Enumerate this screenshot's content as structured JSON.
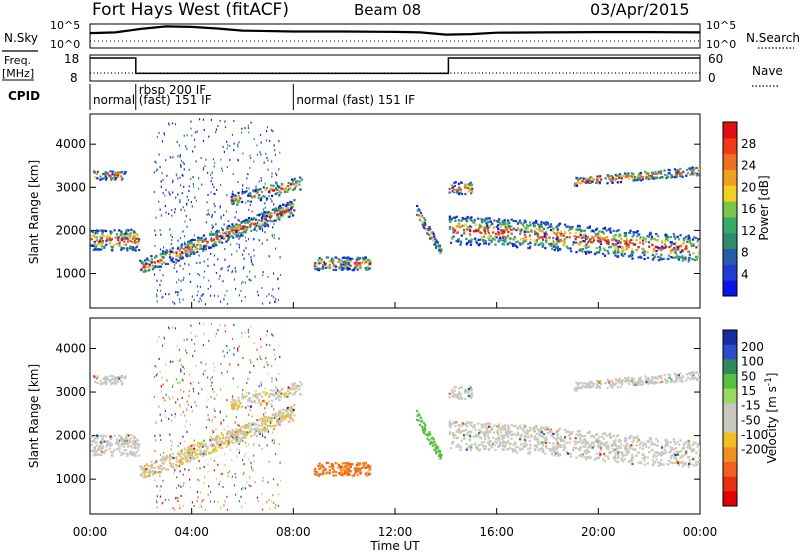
{
  "header": {
    "station": "Fort Hays West (fitACF)",
    "beam": "Beam 08",
    "date": "03/Apr/2015"
  },
  "left_labels": {
    "nsky": "N.Sky",
    "freq_line1": "Freq.",
    "freq_line2": "[MHz]",
    "cpid": "CPID"
  },
  "right_labels": {
    "nsearch": "N.Search",
    "nave": "Nave"
  },
  "cpid_segments": [
    {
      "label": "normal",
      "start": 0.0,
      "end": 1.8
    },
    {
      "label": "rbsp 200 IF",
      "start": 1.8,
      "end": 8.0
    },
    {
      "label": "(fast) 151 IF",
      "start": 1.8,
      "end": 8.0
    },
    {
      "label": "normal (fast) 151 IF",
      "start": 8.0,
      "end": 24.0
    }
  ],
  "colors": {
    "power_bar": [
      "#0a14e6",
      "#1e3cd2",
      "#2a5aaa",
      "#2f8a6e",
      "#3aaa6a",
      "#7ac64a",
      "#f0d020",
      "#f0a020",
      "#f07020",
      "#f03a18",
      "#e01010"
    ],
    "velocity_bar": [
      "#1a2aa0",
      "#2a50c8",
      "#2e8a5a",
      "#58c040",
      "#9ad860",
      "#c8c8c0",
      "#c8c8c0",
      "#f0c020",
      "#f09020",
      "#f06020",
      "#e83010",
      "#e00000"
    ],
    "scatter_gray": "#c8c8c0"
  },
  "chart_data": [
    {
      "type": "line",
      "name": "sky-noise-panel",
      "left_ticks": [
        "10^5",
        "10^0"
      ],
      "right_ticks": [
        "10^5",
        "10^0"
      ],
      "series": [
        {
          "name": "N.Sky",
          "x": [
            0,
            1,
            2,
            3,
            4,
            5,
            6,
            8,
            10,
            12,
            13,
            14,
            15,
            16,
            18,
            20,
            22,
            24
          ],
          "values": [
            2000,
            3000,
            20000,
            80000,
            60000,
            25000,
            8000,
            5000,
            5000,
            4000,
            3000,
            900,
            1200,
            2500,
            3000,
            3500,
            3500,
            3000
          ]
        }
      ],
      "ylim": [
        1,
        100000
      ]
    },
    {
      "type": "line",
      "name": "frequency-panel",
      "left_ticks": [
        "18",
        "8"
      ],
      "right_ticks": [
        "60",
        "0"
      ],
      "series": [
        {
          "name": "Freq.",
          "x": [
            0,
            1.8,
            1.8,
            14.1,
            14.1,
            24
          ],
          "values": [
            18,
            18,
            11,
            11,
            18,
            18
          ]
        }
      ],
      "ylim": [
        8,
        18
      ]
    },
    {
      "type": "heatmap",
      "name": "power-panel",
      "ylabel": "Slant Range [km]",
      "yticks": [
        1000,
        2000,
        3000,
        4000
      ],
      "ylim": [
        200,
        4700
      ],
      "xlim": [
        0,
        24
      ],
      "colorbar_label": "Power [dB]",
      "colorbar_ticks": [
        4,
        8,
        12,
        16,
        20,
        24,
        28
      ]
    },
    {
      "type": "heatmap",
      "name": "velocity-panel",
      "ylabel": "Slant Range [km]",
      "xlabel": "Time UT",
      "xticks": [
        "00:00",
        "04:00",
        "08:00",
        "12:00",
        "16:00",
        "20:00",
        "00:00"
      ],
      "xtick_hours": [
        0,
        4,
        8,
        12,
        16,
        20,
        24
      ],
      "yticks": [
        1000,
        2000,
        3000,
        4000
      ],
      "ylim": [
        200,
        4700
      ],
      "xlim": [
        0,
        24
      ],
      "colorbar_label": "Velocity [m s-1]",
      "colorbar_ticks": [
        200,
        100,
        50,
        15,
        -15,
        -50,
        -100,
        -200
      ]
    }
  ],
  "tick_labels": {
    "hours": [
      "00:00",
      "04:00",
      "08:00",
      "12:00",
      "16:00",
      "20:00",
      "00:00"
    ],
    "range": [
      "1000",
      "2000",
      "3000",
      "4000"
    ],
    "power": [
      "4",
      "8",
      "12",
      "16",
      "20",
      "24",
      "28"
    ],
    "velocity": [
      "200",
      "100",
      "50",
      "15",
      "-15",
      "-50",
      "-100",
      "-200"
    ],
    "xlabel": "Time UT",
    "ylabel": "Slant Range [km]",
    "power_label": "Power [dB]",
    "velocity_label": "Velocity [m s",
    "velocity_label_sup": "-1",
    "velocity_label_end": "]"
  }
}
